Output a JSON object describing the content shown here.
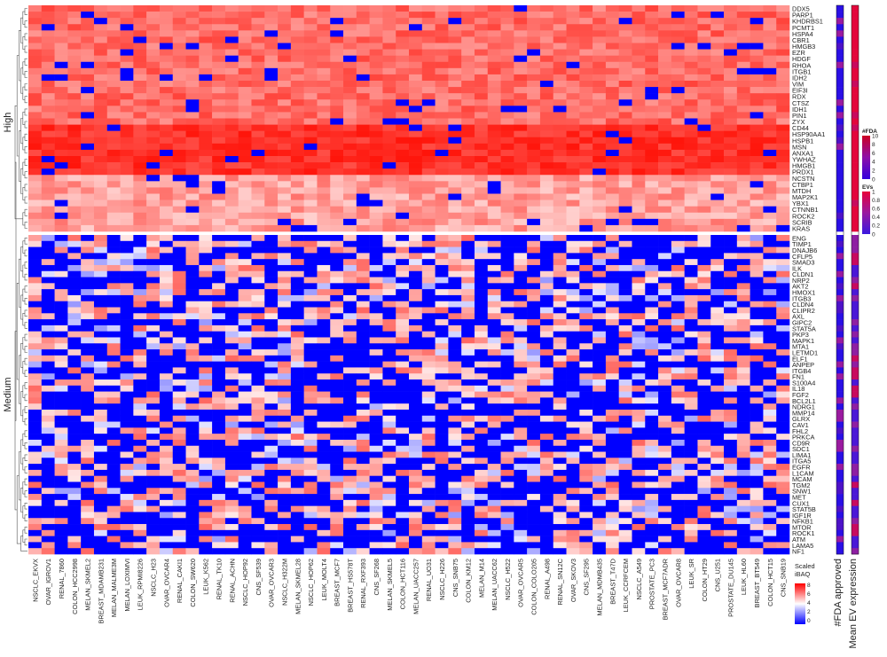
{
  "chart_data": {
    "type": "heatmap",
    "title": "",
    "xlabel": "",
    "ylabel": "",
    "row_groups": [
      {
        "name": "High",
        "rows": [
          "DDX5",
          "PARP1",
          "KHDRBS1",
          "PCMT1",
          "HSPA4",
          "CBR1",
          "HMGB3",
          "EZR",
          "HDGF",
          "RHOA",
          "ITGB1",
          "IDH2",
          "VIM",
          "EIF3I",
          "RDX",
          "CTSZ",
          "IDH1",
          "PIN1",
          "ZYX",
          "CD44",
          "HSP90AA1",
          "HSPB1",
          "MSN",
          "ANXA1",
          "YWHAZ",
          "HMGB1",
          "PRDX1",
          "NCSTN",
          "CTBP1",
          "MTDH",
          "MAP2K1",
          "YBX1",
          "CTNNB1",
          "ROCK2",
          "SCRIB",
          "KRAS"
        ]
      },
      {
        "name": "Medium",
        "rows": [
          "ENG",
          "TIMP1",
          "DNAJB6",
          "CFLP5",
          "SMAD3",
          "ILK",
          "CLDN1",
          "NRP2",
          "AKT2",
          "HMOX1",
          "ITGB3",
          "CLDN4",
          "CLIPR2",
          "AXL",
          "GIPC2",
          "STAT5A",
          "PKP3",
          "MAPK1",
          "MTA1",
          "LETMD1",
          "ELF1",
          "ANPEP",
          "ITGB4",
          "FN1",
          "S100A4",
          "IL18",
          "FGF2",
          "BCL2L1",
          "NDRG1",
          "MMP14",
          "GLRX",
          "CAV1",
          "FHL2",
          "PRKCA",
          "CD9R",
          "SDC1",
          "LIMA1",
          "ITGA5",
          "EGFR",
          "L1CAM",
          "MCAM",
          "TGM2",
          "SNW1",
          "MET",
          "CUX1",
          "STAT5B",
          "IGF1R",
          "NFKB1",
          "MTOR",
          "ROCK1",
          "ATM",
          "LAMA5",
          "NF1"
        ]
      }
    ],
    "columns": [
      "NSCLC_EKVX",
      "OVAR_IGROV1",
      "RENAL_7860",
      "COLON_HCC2998",
      "MELAN_SKMEL2",
      "BREAST_MDAMB231",
      "MELAN_MALME3M",
      "MELAN_LOXIMVI",
      "LEUK_RPMI8226",
      "NSCLC_H23",
      "OVAR_OVCAR4",
      "RENAL_CAKI1",
      "COLON_SW620",
      "LEUK_K562",
      "RENAL_TK10",
      "RENAL_ACHN",
      "NSCLC_HOP92",
      "CNS_SF539",
      "OVAR_OVCAR3",
      "NSCLC_H322M",
      "MELAN_SKMEL28",
      "NSCLC_HOP62",
      "LEUK_MOLT4",
      "BREAST_MCF7",
      "BREAST_HS578T",
      "RENAL_RXF393",
      "CNS_SF268",
      "MELAN_SKMEL5",
      "COLON_HCT116",
      "MELAN_UACC257",
      "RENAL_UO31",
      "NSCLC_H226",
      "CNS_SNB75",
      "COLON_KM12",
      "MELAN_M14",
      "MELAN_UACC62",
      "NSCLC_H522",
      "OVAR_OVCAR5",
      "COLON_COLO205",
      "RENAL_A498",
      "RENAL_SN12C",
      "OVAR_SKOV3",
      "CNS_SF295",
      "MELAN_MDMB435",
      "BREAST_T47D",
      "LEUK_CCRFCEM",
      "NSCLC_A549",
      "PROSTATE_PC3",
      "BREAST_MCF7ADR",
      "OVAR_OVCAR8",
      "LEUK_SR",
      "COLON_HT29",
      "CNS_U251",
      "PROSTATE_DU145",
      "LEUK_HL60",
      "BREAST_BT549",
      "COLON_HCT15",
      "CNS_SNB19"
    ],
    "value_legend": {
      "title": "Scaled\niBAQ",
      "ticks": [
        "8",
        "6",
        "4",
        "2",
        "0"
      ],
      "colors": [
        "#ff0000",
        "#ffffff",
        "#0000ff"
      ]
    },
    "annotation_columns": [
      "#FDA approved",
      "Mean EV expression"
    ],
    "fda_legend": {
      "title": "#FDA",
      "ticks": [
        "10",
        "8",
        "6",
        "4",
        "2",
        "0"
      ],
      "colors": [
        "#cc0022",
        "#8d0fa8",
        "#3300dd"
      ]
    },
    "ev_legend": {
      "title": "EVs",
      "ticks": [
        "1",
        "0.8",
        "0.6",
        "0.4",
        "0.2",
        "0"
      ],
      "colors": [
        "#e8003a",
        "#9a1aa0",
        "#3a18e0"
      ]
    }
  }
}
